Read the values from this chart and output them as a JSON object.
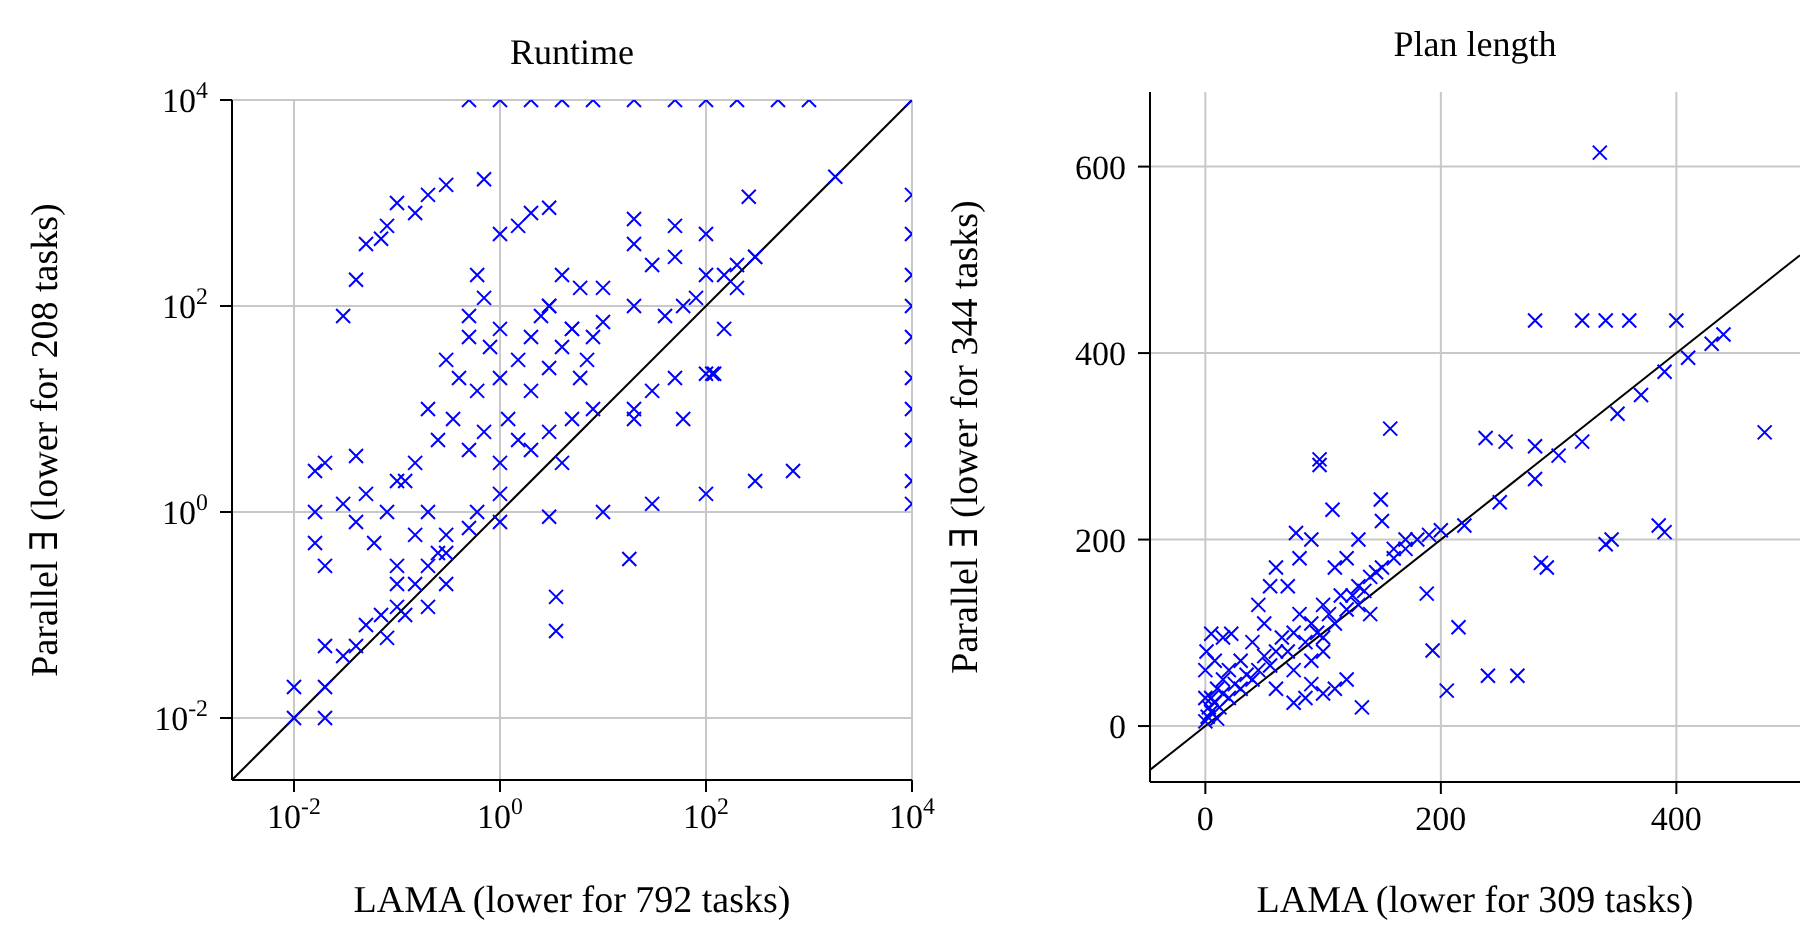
{
  "chart_data": [
    {
      "type": "scatter",
      "title": "Runtime",
      "xlabel": "LAMA (lower for 792 tasks)",
      "ylabel": "Parallel ∃ (lower for 208 tasks)",
      "log": "xy",
      "grid": true,
      "marker": "cross",
      "xlim": [
        0.0025,
        10000
      ],
      "ylim": [
        0.0025,
        10000
      ],
      "xticks": [
        {
          "value": 0.01,
          "label": "10$^{-2}$"
        },
        {
          "value": 1,
          "label": "10$^{0}$"
        },
        {
          "value": 100,
          "label": "10$^{2}$"
        },
        {
          "value": 10000,
          "label": "10$^{4}$"
        }
      ],
      "yticks": [
        {
          "value": 0.01,
          "label": "10$^{-2}$"
        },
        {
          "value": 1,
          "label": "10$^{0}$"
        },
        {
          "value": 100,
          "label": "10$^{2}$"
        },
        {
          "value": 10000,
          "label": "10$^{4}$"
        }
      ],
      "series": [
        {
          "color": "#0000ff",
          "x": [
            0.5,
            1,
            2,
            4,
            8,
            20,
            50,
            100,
            200,
            500,
            1000,
            10000,
            10000,
            10000,
            10000,
            10000,
            10000,
            10000,
            10000,
            10000,
            10000,
            10000,
            0.05,
            0.08,
            0.1,
            0.2,
            0.3,
            0.7,
            0.07,
            0.15,
            1,
            2,
            3,
            1.5,
            20,
            50,
            100,
            300,
            60,
            150,
            30,
            200,
            1800,
            260,
            0.2,
            0.3,
            0.4,
            0.5,
            0.6,
            0.8,
            1,
            1,
            1.2,
            1.5,
            2,
            2,
            2.5,
            3,
            3,
            4,
            5,
            6,
            7,
            8,
            0.25,
            0.35,
            0.5,
            0.7,
            1,
            1.5,
            2,
            3,
            4,
            5,
            0.15,
            0.1,
            0.6,
            0.7,
            0.5,
            3,
            5,
            8,
            10,
            4,
            6,
            0.016,
            0.016,
            0.016,
            0.02,
            0.03,
            0.04,
            0.05,
            0.06,
            0.08,
            0.1,
            0.12,
            0.15,
            0.2,
            0.25,
            0.3,
            0.02,
            0.04,
            0.01,
            0.02,
            0.02,
            0.01,
            0.02,
            0.03,
            0.04,
            0.05,
            0.07,
            0.1,
            0.1,
            0.15,
            0.2,
            0.3,
            0.3,
            0.5,
            0.6,
            1,
            0.08,
            0.12,
            0.2,
            10,
            20,
            40,
            80,
            100,
            200,
            300,
            150,
            50,
            20,
            20,
            30,
            50,
            100,
            120,
            60,
            1,
            3,
            10,
            30,
            100,
            300,
            700,
            18,
            3.5,
            3.5,
            0.03,
            0.04,
            115,
            20
          ],
          "values": [
            10000,
            10000,
            10000,
            10000,
            10000,
            10000,
            10000,
            10000,
            10000,
            10000,
            10000,
            10000,
            1200,
            500,
            200,
            100,
            50,
            20,
            10,
            5,
            2,
            1.2,
            400,
            600,
            1000,
            1200,
            1500,
            1700,
            450,
            800,
            500,
            800,
            900,
            600,
            700,
            600,
            500,
            300,
            100,
            200,
            250,
            150,
            1800,
            1150,
            10,
            30,
            20,
            50,
            15,
            40,
            60,
            20,
            8,
            30,
            50,
            15,
            80,
            25,
            100,
            40,
            60,
            20,
            30,
            10,
            5,
            8,
            4,
            6,
            3,
            5,
            4,
            6,
            3,
            8,
            3,
            2,
            200,
            120,
            80,
            100,
            60,
            50,
            70,
            200,
            150,
            2.5,
            1,
            0.5,
            0.3,
            1.2,
            0.8,
            1.5,
            0.5,
            1,
            0.3,
            2,
            0.6,
            1,
            0.4,
            0.2,
            3,
            3.5,
            0.01,
            0.02,
            0.01,
            0.02,
            0.05,
            0.04,
            0.05,
            0.08,
            0.1,
            0.12,
            0.2,
            0.2,
            0.3,
            0.4,
            0.6,
            0.7,
            1,
            1.5,
            0.06,
            0.1,
            0.12,
            150,
            100,
            80,
            120,
            200,
            250,
            300,
            60,
            300,
            400,
            10,
            15,
            20,
            22,
            22,
            8,
            0.8,
            0.9,
            1,
            1.2,
            1.5,
            2,
            2.5,
            0.35,
            0.15,
            0.07,
            80,
            180,
            22,
            8
          ]
        },
        {
          "type": "line",
          "color": "#000000",
          "marker": "none",
          "x": [
            0.0025,
            10000
          ],
          "values": [
            0.0025,
            10000
          ]
        }
      ]
    },
    {
      "type": "scatter",
      "title": "Plan length",
      "xlabel": "LAMA (lower for 309 tasks)",
      "ylabel": "Parallel ∃ (lower for 344 tasks)",
      "grid": true,
      "marker": "cross",
      "xlim": [
        -47,
        505
      ],
      "ylim": [
        -60,
        680
      ],
      "xticks": [
        0,
        200,
        400
      ],
      "yticks": [
        0,
        200,
        400,
        600
      ],
      "series": [
        {
          "color": "#0000ff",
          "x": [
            335,
            280,
            320,
            340,
            360,
            400,
            475,
            385,
            390,
            340,
            345,
            285,
            290,
            240,
            265,
            205,
            220,
            250,
            280,
            300,
            320,
            350,
            370,
            390,
            410,
            430,
            440,
            238,
            255,
            280,
            157,
            97,
            97,
            108,
            77,
            149,
            5,
            22,
            133,
            188,
            193,
            215,
            0,
            2,
            3,
            5,
            5,
            8,
            10,
            10,
            12,
            15,
            15,
            20,
            20,
            25,
            30,
            30,
            35,
            40,
            40,
            45,
            50,
            50,
            55,
            60,
            60,
            65,
            70,
            75,
            75,
            80,
            85,
            90,
            90,
            95,
            100,
            100,
            105,
            110,
            115,
            120,
            125,
            130,
            135,
            140,
            145,
            150,
            160,
            170,
            180,
            190,
            200,
            60,
            70,
            80,
            90,
            110,
            120,
            130,
            150,
            160,
            170,
            120,
            110,
            100,
            85,
            75,
            90,
            130,
            140,
            100,
            0,
            0,
            1,
            8,
            15,
            45,
            55
          ],
          "values": [
            615,
            435,
            435,
            435,
            435,
            435,
            315,
            215,
            208,
            195,
            200,
            175,
            170,
            54,
            54,
            38,
            215,
            240,
            265,
            290,
            305,
            335,
            355,
            380,
            395,
            410,
            420,
            309,
            305,
            300,
            319,
            286,
            280,
            232,
            207,
            243,
            99,
            99,
            20,
            142,
            81,
            106,
            5,
            10,
            20,
            15,
            30,
            25,
            8,
            40,
            20,
            35,
            50,
            30,
            60,
            45,
            40,
            70,
            55,
            50,
            90,
            60,
            75,
            110,
            65,
            80,
            40,
            95,
            80,
            100,
            60,
            120,
            90,
            110,
            70,
            100,
            130,
            80,
            120,
            110,
            140,
            125,
            140,
            150,
            145,
            160,
            165,
            170,
            180,
            190,
            200,
            205,
            210,
            170,
            150,
            180,
            200,
            170,
            180,
            200,
            220,
            190,
            200,
            50,
            40,
            35,
            30,
            25,
            45,
            130,
            120,
            95,
            60,
            30,
            80,
            70,
            95,
            130,
            150
          ]
        },
        {
          "type": "line",
          "color": "#000000",
          "marker": "none",
          "x": [
            -47,
            505
          ],
          "values": [
            -47,
            505
          ]
        }
      ]
    }
  ]
}
